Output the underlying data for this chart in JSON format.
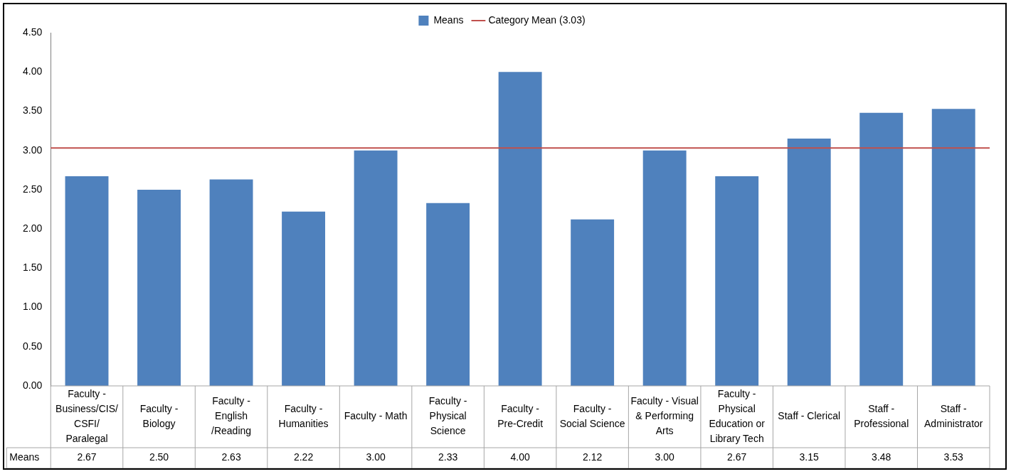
{
  "chart_data": {
    "type": "bar",
    "categories": [
      "Faculty - Business/CIS/ CSFI/ Paralegal",
      "Faculty - Biology",
      "Faculty - English /Reading",
      "Faculty - Humanities",
      "Faculty - Math",
      "Faculty - Physical Science",
      "Faculty - Pre-Credit",
      "Faculty - Social Science",
      "Faculty - Visual & Performing Arts",
      "Faculty - Physical Education or Library Tech",
      "Staff - Clerical",
      "Staff - Professional",
      "Staff - Administrator"
    ],
    "series": [
      {
        "name": "Means",
        "color": "#4f81bd",
        "values": [
          2.67,
          2.5,
          2.63,
          2.22,
          3.0,
          2.33,
          4.0,
          2.12,
          3.0,
          2.67,
          3.15,
          3.48,
          3.53
        ],
        "value_labels": [
          "2.67",
          "2.50",
          "2.63",
          "2.22",
          "3.00",
          "2.33",
          "4.00",
          "2.12",
          "3.00",
          "2.67",
          "3.15",
          "3.48",
          "3.53"
        ]
      }
    ],
    "ylim": [
      0,
      4.5
    ],
    "yticks": [
      {
        "value": 0,
        "label": "0.00"
      },
      {
        "value": 0.5,
        "label": "0.50"
      },
      {
        "value": 1,
        "label": "1.00"
      },
      {
        "value": 1.5,
        "label": "1.50"
      },
      {
        "value": 2,
        "label": "2.00"
      },
      {
        "value": 2.5,
        "label": "2.50"
      },
      {
        "value": 3,
        "label": "3.00"
      },
      {
        "value": 3.5,
        "label": "3.50"
      },
      {
        "value": 4,
        "label": "4.00"
      },
      {
        "value": 4.5,
        "label": "4.50"
      }
    ],
    "ref_lines": [
      {
        "axis": "y",
        "value": 3.03,
        "label": "Category Mean (3.03)",
        "color": "#c0504d"
      }
    ],
    "legend": "top",
    "grid": false
  }
}
